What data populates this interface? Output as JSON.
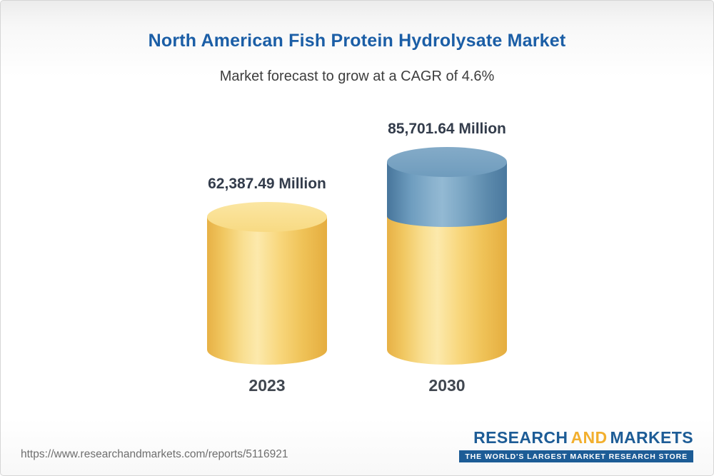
{
  "page": {
    "title": "North American Fish Protein Hydrolysate Market",
    "subtitle": "Market forecast to grow at a CAGR of 4.6%"
  },
  "chart_data": {
    "type": "bar",
    "subtype": "3d-cylinder",
    "categories": [
      "2023",
      "2030"
    ],
    "values": [
      62387.49,
      85701.64
    ],
    "value_labels": [
      "62,387.49 Million",
      "85,701.64 Million"
    ],
    "title": "North American Fish Protein Hydrolysate Market",
    "subtitle": "Market forecast to grow at a CAGR of 4.6%",
    "cagr_pct": 4.6,
    "xlabel": "",
    "ylabel": "",
    "ylim": [
      0,
      85701.64
    ],
    "grid": false,
    "legend": "none",
    "annotations": "2030 bar drawn as stacked cylinder: yellow base equal to 2023 value plus blue growth segment on top",
    "colors": {
      "bar_2023": "#f6ca5e",
      "bar_2030_base": "#f6ca5e",
      "bar_2030_growth": "#6d9bbd",
      "title_text": "#1b5ea6",
      "label_text": "#333c4b"
    }
  },
  "footer": {
    "url": "https://www.researchandmarkets.com/reports/5116921",
    "logo": {
      "part1": "RESEARCH",
      "part2": "AND",
      "part3": "MARKETS",
      "tagline": "THE WORLD'S LARGEST MARKET RESEARCH STORE"
    }
  }
}
